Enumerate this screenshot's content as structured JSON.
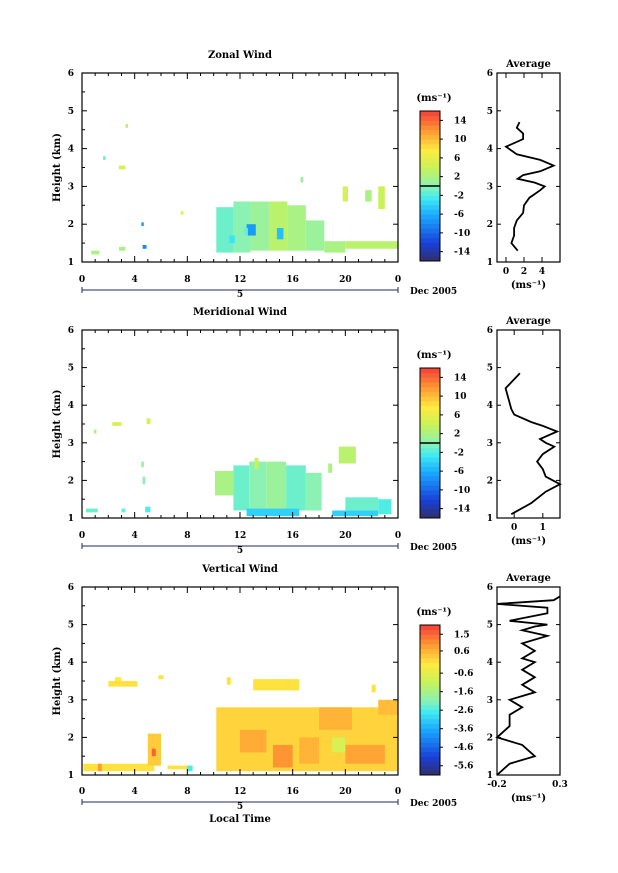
{
  "x_axis": {
    "ticks": [
      "0",
      "4",
      "8",
      "12",
      "16",
      "20",
      "0"
    ],
    "tick_hours": [
      0,
      4,
      8,
      12,
      16,
      20,
      24
    ],
    "day_label": "5",
    "date_label": "Dec 2005",
    "xlabel": "Local Time"
  },
  "panels": [
    {
      "title": "Zonal Wind",
      "ylabel": "Height (km)",
      "yticks": [
        "1",
        "2",
        "3",
        "4",
        "5",
        "6"
      ],
      "colorbar": {
        "unit": "(ms⁻¹)",
        "ticks": [
          "14",
          "10",
          "6",
          "2",
          "-2",
          "-6",
          "-10",
          "-14"
        ],
        "range": [
          -16,
          16
        ],
        "line_at": 0
      },
      "average": {
        "title": "Average",
        "xlabel": "(ms⁻¹)",
        "xticks": [
          "0",
          "2",
          "4"
        ],
        "xtick_values": [
          0,
          2,
          4
        ],
        "xlim": [
          -1,
          6
        ],
        "yticks": [
          "1",
          "2",
          "3",
          "4",
          "5",
          "6"
        ]
      }
    },
    {
      "title": "Meridional Wind",
      "ylabel": "Height (km)",
      "yticks": [
        "1",
        "2",
        "3",
        "4",
        "5",
        "6"
      ],
      "colorbar": {
        "unit": "(ms⁻¹)",
        "ticks": [
          "14",
          "10",
          "6",
          "2",
          "-2",
          "-6",
          "-10",
          "-14"
        ],
        "range": [
          -16,
          16
        ],
        "line_at": 0
      },
      "average": {
        "title": "Average",
        "xlabel": "(ms⁻¹)",
        "xticks": [
          "0",
          "1"
        ],
        "xtick_values": [
          0,
          1
        ],
        "xlim": [
          -0.6,
          1.6
        ],
        "yticks": [
          "1",
          "2",
          "3",
          "4",
          "5",
          "6"
        ]
      }
    },
    {
      "title": "Vertical Wind",
      "ylabel": "Height (km)",
      "yticks": [
        "1",
        "2",
        "3",
        "4",
        "5",
        "6"
      ],
      "colorbar": {
        "unit": "(ms⁻¹)",
        "ticks": [
          "1.5",
          "0.6",
          "-0.6",
          "-1.6",
          "-2.6",
          "-3.6",
          "-4.6",
          "-5.6"
        ],
        "range": [
          -6.1,
          2.0
        ],
        "line_at": null
      },
      "average": {
        "title": "Average",
        "xlabel": "(ms⁻¹)",
        "xticks": [
          "-0.2",
          "0.3"
        ],
        "xtick_values": [
          -0.2,
          0.3
        ],
        "xlim": [
          -0.2,
          0.3
        ],
        "yticks": [
          "1",
          "2",
          "3",
          "4",
          "5",
          "6"
        ]
      }
    }
  ],
  "chart_data": [
    {
      "type": "heatmap",
      "title": "Zonal Wind",
      "ylabel": "Height (km)",
      "ylim": [
        1,
        6
      ],
      "xlim": [
        0,
        24
      ],
      "value_range": [
        -16,
        16
      ],
      "cells": [
        {
          "t": [
            3.3,
            3.5
          ],
          "h": [
            4.55,
            4.65
          ],
          "v": 3
        },
        {
          "t": [
            1.6,
            1.8
          ],
          "h": [
            3.7,
            3.8
          ],
          "v": -1
        },
        {
          "t": [
            2.8,
            3.3
          ],
          "h": [
            3.45,
            3.55
          ],
          "v": 5
        },
        {
          "t": [
            7.5,
            7.7
          ],
          "h": [
            2.25,
            2.35
          ],
          "v": 6
        },
        {
          "t": [
            4.5,
            4.7
          ],
          "h": [
            1.95,
            2.05
          ],
          "v": -6
        },
        {
          "t": [
            0.7,
            1.3
          ],
          "h": [
            1.2,
            1.3
          ],
          "v": 2
        },
        {
          "t": [
            2.8,
            3.3
          ],
          "h": [
            1.3,
            1.4
          ],
          "v": 2
        },
        {
          "t": [
            4.6,
            4.9
          ],
          "h": [
            1.35,
            1.45
          ],
          "v": -8
        },
        {
          "t": [
            10.2,
            11.5
          ],
          "h": [
            1.25,
            2.45
          ],
          "v": -1
        },
        {
          "t": [
            11.5,
            12.8
          ],
          "h": [
            1.25,
            2.6
          ],
          "v": 0
        },
        {
          "t": [
            12.8,
            14.2
          ],
          "h": [
            1.3,
            2.6
          ],
          "v": 1
        },
        {
          "t": [
            14.2,
            15.6
          ],
          "h": [
            1.3,
            2.6
          ],
          "v": 3
        },
        {
          "t": [
            15.6,
            17.0
          ],
          "h": [
            1.3,
            2.5
          ],
          "v": 2
        },
        {
          "t": [
            17.0,
            18.4
          ],
          "h": [
            1.3,
            2.1
          ],
          "v": 1
        },
        {
          "t": [
            18.4,
            20.0
          ],
          "h": [
            1.25,
            1.55
          ],
          "v": 2
        },
        {
          "t": [
            20.0,
            24.0
          ],
          "h": [
            1.35,
            1.55
          ],
          "v": 3
        },
        {
          "t": [
            19.8,
            20.2
          ],
          "h": [
            2.6,
            3.0
          ],
          "v": 5
        },
        {
          "t": [
            21.5,
            22.0
          ],
          "h": [
            2.6,
            2.9
          ],
          "v": 2
        },
        {
          "t": [
            22.5,
            23.0
          ],
          "h": [
            2.4,
            3.0
          ],
          "v": 4
        },
        {
          "t": [
            12.5,
            13.2
          ],
          "h": [
            1.7,
            2.0
          ],
          "v": -7
        },
        {
          "t": [
            14.8,
            15.3
          ],
          "h": [
            1.6,
            1.9
          ],
          "v": -5
        },
        {
          "t": [
            11.2,
            11.6
          ],
          "h": [
            1.5,
            1.7
          ],
          "v": -3
        },
        {
          "t": [
            12.3,
            12.6
          ],
          "h": [
            1.7,
            1.9
          ],
          "v": -1
        },
        {
          "t": [
            16.6,
            16.8
          ],
          "h": [
            3.1,
            3.25
          ],
          "v": 1
        }
      ],
      "average_profile": {
        "x": [
          1.3,
          0.6,
          0.9,
          0.9,
          1.2,
          1.9,
          2.0,
          2.6,
          3.2,
          3.8,
          4.3,
          3.2,
          1.3,
          1.9,
          3.8,
          5.3,
          3.8,
          1.2,
          0.0,
          1.9,
          1.9,
          1.2,
          1.5
        ],
        "height_km": [
          1.3,
          1.5,
          1.7,
          1.9,
          2.1,
          2.3,
          2.5,
          2.7,
          2.8,
          2.9,
          3.0,
          3.1,
          3.2,
          3.3,
          3.4,
          3.55,
          3.7,
          3.85,
          4.05,
          4.25,
          4.4,
          4.55,
          4.7
        ]
      }
    },
    {
      "type": "heatmap",
      "title": "Meridional Wind",
      "ylabel": "Height (km)",
      "ylim": [
        1,
        6
      ],
      "xlim": [
        0,
        24
      ],
      "value_range": [
        -16,
        16
      ],
      "cells": [
        {
          "t": [
            0.3,
            1.2
          ],
          "h": [
            1.15,
            1.25
          ],
          "v": -1
        },
        {
          "t": [
            3.0,
            3.3
          ],
          "h": [
            1.15,
            1.25
          ],
          "v": -1
        },
        {
          "t": [
            4.8,
            5.2
          ],
          "h": [
            1.15,
            1.3
          ],
          "v": -2
        },
        {
          "t": [
            4.5,
            4.7
          ],
          "h": [
            2.35,
            2.5
          ],
          "v": 1
        },
        {
          "t": [
            4.6,
            4.8
          ],
          "h": [
            1.9,
            2.1
          ],
          "v": 0
        },
        {
          "t": [
            0.9,
            1.1
          ],
          "h": [
            3.25,
            3.35
          ],
          "v": 2
        },
        {
          "t": [
            2.3,
            3.0
          ],
          "h": [
            3.45,
            3.55
          ],
          "v": 5
        },
        {
          "t": [
            4.9,
            5.2
          ],
          "h": [
            3.5,
            3.65
          ],
          "v": 5
        },
        {
          "t": [
            10.1,
            11.5
          ],
          "h": [
            1.6,
            2.25
          ],
          "v": 2
        },
        {
          "t": [
            11.5,
            12.7
          ],
          "h": [
            1.2,
            2.4
          ],
          "v": -1
        },
        {
          "t": [
            12.7,
            14.0
          ],
          "h": [
            1.2,
            2.5
          ],
          "v": 0
        },
        {
          "t": [
            14.0,
            15.5
          ],
          "h": [
            1.2,
            2.5
          ],
          "v": 1
        },
        {
          "t": [
            15.5,
            17.0
          ],
          "h": [
            1.2,
            2.4
          ],
          "v": -1
        },
        {
          "t": [
            17.0,
            18.2
          ],
          "h": [
            1.2,
            2.2
          ],
          "v": 0
        },
        {
          "t": [
            12.5,
            16.5
          ],
          "h": [
            1.05,
            1.25
          ],
          "v": -4
        },
        {
          "t": [
            19.0,
            22.5
          ],
          "h": [
            1.05,
            1.2
          ],
          "v": -4
        },
        {
          "t": [
            19.5,
            20.8
          ],
          "h": [
            2.45,
            2.9
          ],
          "v": 3
        },
        {
          "t": [
            20.0,
            22.5
          ],
          "h": [
            1.2,
            1.55
          ],
          "v": -1
        },
        {
          "t": [
            22.5,
            23.5
          ],
          "h": [
            1.1,
            1.5
          ],
          "v": -2
        },
        {
          "t": [
            13.1,
            13.4
          ],
          "h": [
            2.3,
            2.6
          ],
          "v": 4
        },
        {
          "t": [
            18.7,
            19.0
          ],
          "h": [
            2.2,
            2.45
          ],
          "v": 2
        }
      ],
      "average_profile": {
        "x": [
          -0.1,
          0.6,
          1.1,
          1.6,
          1.1,
          1.0,
          0.8,
          1.0,
          1.4,
          1.1,
          0.9,
          1.5,
          1.0,
          0.6,
          0.0,
          -0.1,
          -0.3,
          0.2
        ],
        "height_km": [
          1.1,
          1.4,
          1.7,
          1.9,
          2.1,
          2.3,
          2.5,
          2.7,
          2.9,
          3.0,
          3.1,
          3.3,
          3.45,
          3.55,
          3.75,
          3.9,
          4.45,
          4.85
        ]
      }
    },
    {
      "type": "heatmap",
      "title": "Vertical Wind",
      "ylabel": "Height (km)",
      "ylim": [
        1,
        6
      ],
      "xlim": [
        0,
        24
      ],
      "value_range": [
        -6.1,
        2.0
      ],
      "cells": [
        {
          "t": [
            0.1,
            5.5
          ],
          "h": [
            1.1,
            1.3
          ],
          "v": 0.0
        },
        {
          "t": [
            1.2,
            1.5
          ],
          "h": [
            1.1,
            1.3
          ],
          "v": 0.9
        },
        {
          "t": [
            5.0,
            6.0
          ],
          "h": [
            1.25,
            2.1
          ],
          "v": 0.3
        },
        {
          "t": [
            5.3,
            5.6
          ],
          "h": [
            1.5,
            1.7
          ],
          "v": 1.6
        },
        {
          "t": [
            2.0,
            4.2
          ],
          "h": [
            3.35,
            3.5
          ],
          "v": 0.0
        },
        {
          "t": [
            2.5,
            3.0
          ],
          "h": [
            3.5,
            3.6
          ],
          "v": -0.2
        },
        {
          "t": [
            5.8,
            6.2
          ],
          "h": [
            3.55,
            3.65
          ],
          "v": 0.0
        },
        {
          "t": [
            6.5,
            8.3
          ],
          "h": [
            1.15,
            1.25
          ],
          "v": 0.0
        },
        {
          "t": [
            8.0,
            8.4
          ],
          "h": [
            1.1,
            1.25
          ],
          "v": -2.6
        },
        {
          "t": [
            10.2,
            24.0
          ],
          "h": [
            1.1,
            2.8
          ],
          "v": 0.2
        },
        {
          "t": [
            12.0,
            14.0
          ],
          "h": [
            1.6,
            2.2
          ],
          "v": 0.7
        },
        {
          "t": [
            14.5,
            16.0
          ],
          "h": [
            1.2,
            1.8
          ],
          "v": 1.0
        },
        {
          "t": [
            16.5,
            18.0
          ],
          "h": [
            1.3,
            2.0
          ],
          "v": 0.6
        },
        {
          "t": [
            18.0,
            20.5
          ],
          "h": [
            2.2,
            2.8
          ],
          "v": 0.6
        },
        {
          "t": [
            20.0,
            23.0
          ],
          "h": [
            1.3,
            1.8
          ],
          "v": 0.8
        },
        {
          "t": [
            19.0,
            20.0
          ],
          "h": [
            1.6,
            2.0
          ],
          "v": -0.8
        },
        {
          "t": [
            22.5,
            24.0
          ],
          "h": [
            2.6,
            3.0
          ],
          "v": 0.5
        },
        {
          "t": [
            11.0,
            11.3
          ],
          "h": [
            3.4,
            3.6
          ],
          "v": 0.0
        },
        {
          "t": [
            13.0,
            16.5
          ],
          "h": [
            3.25,
            3.55
          ],
          "v": 0.0
        },
        {
          "t": [
            22.0,
            22.3
          ],
          "h": [
            3.2,
            3.4
          ],
          "v": 0.0
        }
      ],
      "average_profile": {
        "x": [
          -0.2,
          -0.1,
          0.1,
          0.0,
          -0.2,
          -0.1,
          -0.1,
          0.0,
          -0.1,
          0.1,
          0.0,
          0.1,
          0.0,
          0.1,
          0.0,
          0.1,
          0.0,
          0.2,
          0.0,
          0.1,
          0.2,
          -0.1,
          0.2,
          0.2,
          -0.2,
          0.25,
          0.3
        ],
        "height_km": [
          1.0,
          1.3,
          1.5,
          1.8,
          2.0,
          2.3,
          2.6,
          2.8,
          3.0,
          3.2,
          3.4,
          3.6,
          3.8,
          4.0,
          4.1,
          4.3,
          4.5,
          4.7,
          4.85,
          4.95,
          5.0,
          5.1,
          5.3,
          5.45,
          5.55,
          5.65,
          5.75
        ]
      }
    }
  ]
}
